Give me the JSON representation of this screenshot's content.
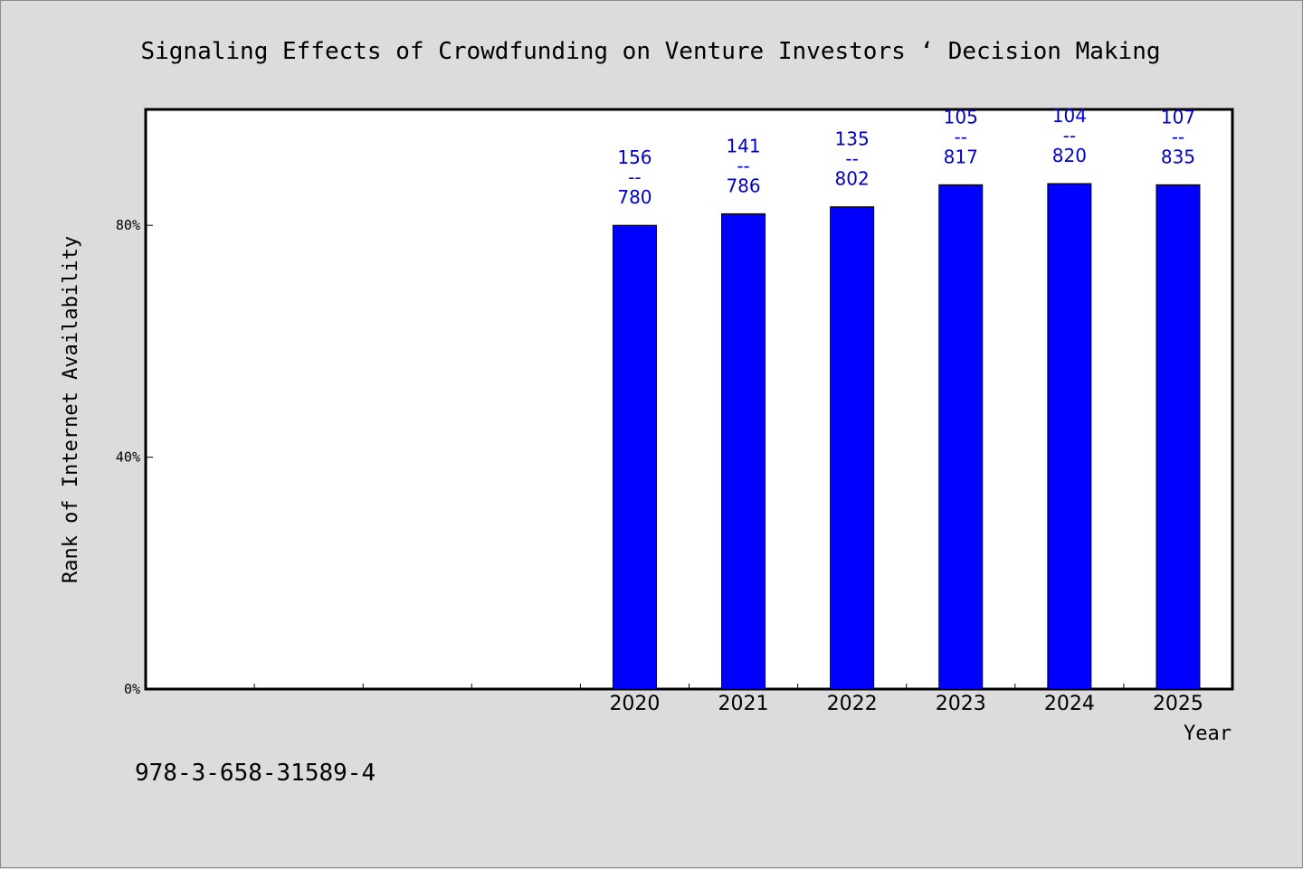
{
  "chart_data": {
    "type": "bar",
    "title": "Signaling Effects of Crowdfunding on Venture Investors ‘ Decision Making",
    "xlabel": "Year",
    "ylabel": "Rank of Internet Availability",
    "categories": [
      "",
      "",
      "",
      "",
      "2020",
      "2021",
      "2022",
      "2023",
      "2024",
      "2025"
    ],
    "values": [
      null,
      null,
      null,
      null,
      80.0,
      82.0,
      83.2,
      87.0,
      87.2,
      87.0
    ],
    "bar_labels": [
      null,
      null,
      null,
      null,
      {
        "top": "156",
        "mid": "--",
        "bottom": "780"
      },
      {
        "top": "141",
        "mid": "--",
        "bottom": "786"
      },
      {
        "top": "135",
        "mid": "--",
        "bottom": "802"
      },
      {
        "top": "105",
        "mid": "--",
        "bottom": "817"
      },
      {
        "top": "104",
        "mid": "--",
        "bottom": "820"
      },
      {
        "top": "107",
        "mid": "--",
        "bottom": "835"
      }
    ],
    "yticks": [
      0,
      40,
      80
    ],
    "ytick_labels": [
      "0%",
      "40%",
      "80%"
    ],
    "ylim": [
      0,
      100
    ],
    "grid": false,
    "legend": "none",
    "bar_color": "#0000ff",
    "label_color": "#0000cc"
  },
  "footnote": "978-3-658-31589-4"
}
